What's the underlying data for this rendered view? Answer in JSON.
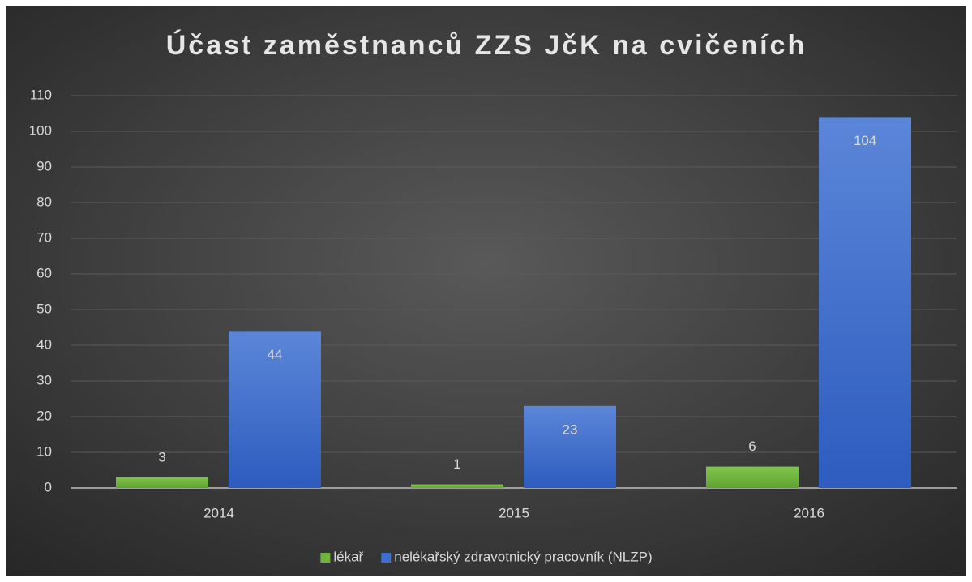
{
  "chart_data": {
    "type": "bar",
    "title": "Účast zaměstnanců ZZS JčK na cvičeních",
    "categories": [
      "2014",
      "2015",
      "2016"
    ],
    "series": [
      {
        "name": "lékař",
        "color": "#6fb33f",
        "values": [
          3,
          1,
          6
        ]
      },
      {
        "name": "nelékařský zdravotnický pracovník (NLZP)",
        "color": "#3f6fcc",
        "values": [
          44,
          23,
          104
        ]
      }
    ],
    "ylim": [
      0,
      110
    ],
    "yticks": [
      0,
      10,
      20,
      30,
      40,
      50,
      60,
      70,
      80,
      90,
      100,
      110
    ],
    "grid": true,
    "legend": "bottom"
  }
}
